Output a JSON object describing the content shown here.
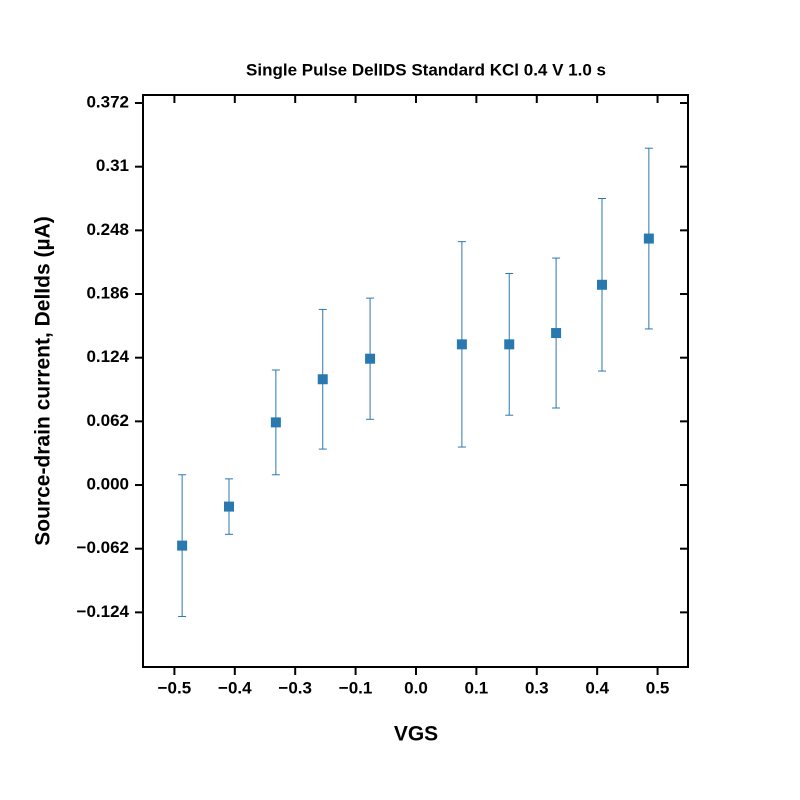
{
  "chart_data": {
    "type": "scatter",
    "title": "Single Pulse DelIDS Standard KCl 0.4 V 1.0 s",
    "x_label": "VGS",
    "y_label": "Source-drain current, DelIds (µA)",
    "xlim": [
      -0.565,
      0.563
    ],
    "ylim": [
      -0.1772,
      0.3798
    ],
    "xticks": [
      {
        "value": -0.5,
        "label": "−0.5"
      },
      {
        "value": -0.375,
        "label": "−0.4"
      },
      {
        "value": -0.25,
        "label": "−0.3"
      },
      {
        "value": -0.125,
        "label": "−0.1"
      },
      {
        "value": 0,
        "label": "0.0"
      },
      {
        "value": 0.125,
        "label": "0.1"
      },
      {
        "value": 0.25,
        "label": "0.3"
      },
      {
        "value": 0.375,
        "label": "0.4"
      },
      {
        "value": 0.5,
        "label": "0.5"
      }
    ],
    "yticks": [
      {
        "value": -0.124,
        "label": "−0.124"
      },
      {
        "value": -0.062,
        "label": "−0.062"
      },
      {
        "value": 0,
        "label": "0.000"
      },
      0.062,
      0.124,
      0.186,
      0.248,
      0.31,
      0.372
    ],
    "series": [
      {
        "color": "#2a78b0",
        "x": [
          -0.484,
          -0.387,
          -0.29,
          -0.193,
          -0.095,
          0.095,
          0.193,
          0.29,
          0.385,
          0.482
        ],
        "values": [
          -0.059,
          -0.021,
          0.061,
          0.103,
          0.123,
          0.137,
          0.137,
          0.148,
          0.195,
          0.24
        ],
        "errors": [
          0.069,
          0.027,
          0.051,
          0.068,
          0.059,
          0.1,
          0.069,
          0.073,
          0.084,
          0.088
        ]
      }
    ]
  }
}
